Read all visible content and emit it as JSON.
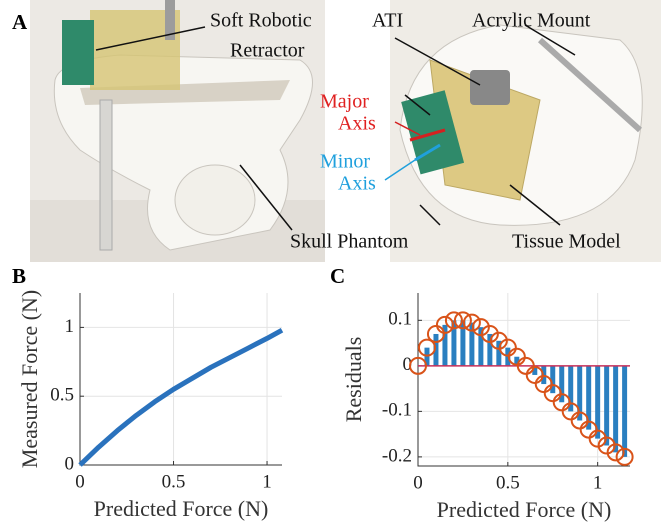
{
  "panel_labels": [
    "A",
    "B",
    "C"
  ],
  "annotations": {
    "retractor": [
      "Soft Robotic",
      "Retractor"
    ],
    "ati": "ATI",
    "mount": "Acrylic Mount",
    "major": [
      "Major",
      "Axis"
    ],
    "minor": [
      "Minor",
      "Axis"
    ],
    "skull": "Skull Phantom",
    "tissue": "Tissue Model"
  },
  "chart_data": [
    {
      "type": "line",
      "xlabel": "Predicted Force (N)",
      "ylabel": "Measured Force (N)",
      "x": [
        0,
        0.1,
        0.2,
        0.3,
        0.4,
        0.5,
        0.6,
        0.7,
        0.8,
        0.9,
        1.0,
        1.08
      ],
      "series": [
        {
          "color": "#2a72bd",
          "values": [
            0,
            0.13,
            0.25,
            0.36,
            0.46,
            0.55,
            0.63,
            0.71,
            0.78,
            0.85,
            0.92,
            0.98
          ]
        }
      ],
      "xlim": [
        0,
        1.08
      ],
      "ylim": [
        0,
        1.25
      ],
      "xticks": [
        0,
        0.5,
        1
      ],
      "yticks": [
        0,
        0.5,
        1
      ],
      "grid": true
    },
    {
      "type": "stem",
      "xlabel": "Predicted Force (N)",
      "ylabel": "Residuals",
      "x": [
        0,
        0.05,
        0.1,
        0.15,
        0.2,
        0.25,
        0.3,
        0.35,
        0.4,
        0.45,
        0.5,
        0.55,
        0.6,
        0.65,
        0.7,
        0.75,
        0.8,
        0.85,
        0.9,
        0.95,
        1.0,
        1.05,
        1.1,
        1.15
      ],
      "series": [
        {
          "color": "#d95319",
          "stem_color": "#2a7fc0",
          "values": [
            0,
            0.04,
            0.07,
            0.09,
            0.1,
            0.1,
            0.095,
            0.085,
            0.07,
            0.055,
            0.04,
            0.02,
            0,
            -0.02,
            -0.04,
            -0.06,
            -0.08,
            -0.1,
            -0.12,
            -0.14,
            -0.16,
            -0.175,
            -0.19,
            -0.2
          ]
        }
      ],
      "xlim": [
        0,
        1.18
      ],
      "ylim": [
        -0.22,
        0.16
      ],
      "xticks": [
        0,
        0.5,
        1
      ],
      "yticks": [
        -0.2,
        -0.1,
        0,
        0.1
      ],
      "grid": true
    }
  ]
}
